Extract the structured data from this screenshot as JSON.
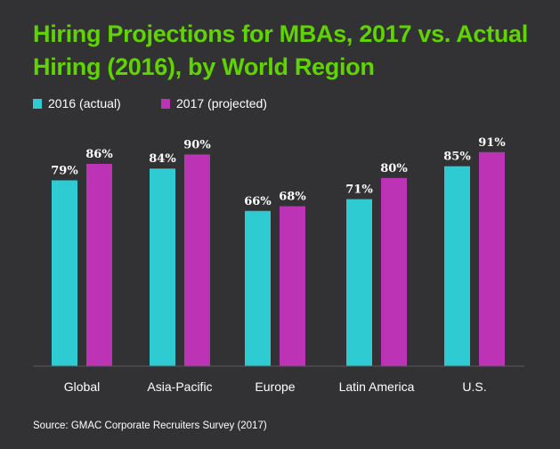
{
  "chart_data": {
    "type": "bar",
    "title": "Hiring Projections for MBAs, 2017 vs. Actual Hiring (2016), by World Region",
    "categories": [
      "Global",
      "Asia-Pacific",
      "Europe",
      "Latin America",
      "U.S."
    ],
    "series": [
      {
        "name": "2016 (actual)",
        "color": "#2ecbd3",
        "values": [
          79,
          84,
          66,
          71,
          85
        ]
      },
      {
        "name": "2017 (projected)",
        "color": "#bc33b5",
        "values": [
          86,
          90,
          68,
          80,
          91
        ]
      }
    ],
    "value_suffix": "%",
    "ylim": [
      0,
      100
    ],
    "grid": false,
    "legend_placement": "top-left",
    "source": "Source: GMAC Corporate Recruiters Survey (2017)"
  },
  "colors": {
    "background": "#323234",
    "title": "#5fd400"
  }
}
